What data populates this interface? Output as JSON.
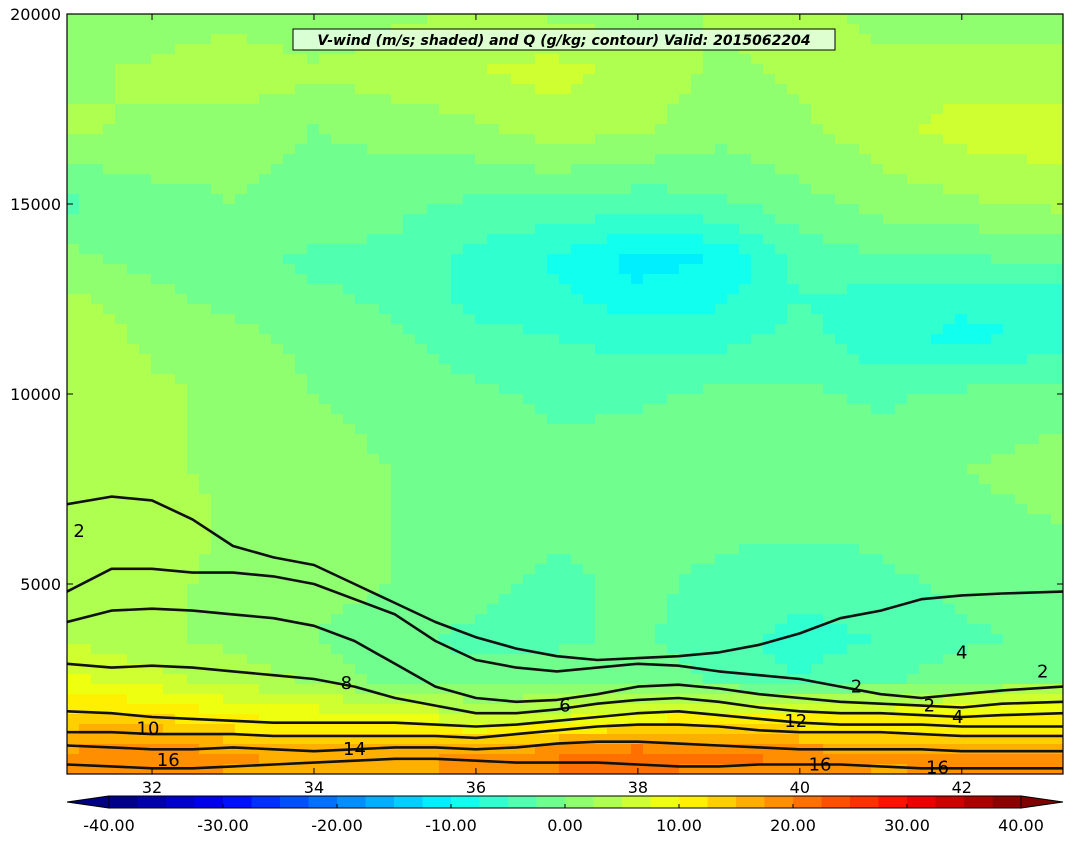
{
  "chart_data": {
    "type": "heatmap",
    "title": "V-wind (m/s; shaded) and Q (g/kg; contour) Valid: 2015062204",
    "x_ticks": [
      "32",
      "34",
      "36",
      "38",
      "40",
      "42"
    ],
    "y_ticks": [
      "5000",
      "10000",
      "15000",
      "20000"
    ],
    "xlim": [
      30.95,
      43.25
    ],
    "ylim": [
      0,
      20000
    ],
    "grid": false,
    "shaded_field": {
      "name": "V-wind",
      "units": "m/s",
      "colormap": "jet",
      "colorbar_range": [
        -40,
        40
      ],
      "colorbar_ticks": [
        "-40.00",
        "-30.00",
        "-20.00",
        "-10.00",
        "0.00",
        "10.00",
        "20.00",
        "30.00",
        "40.00"
      ],
      "colorbar_extend": "both",
      "x_lon": [
        31.0,
        32.0,
        33.0,
        34.0,
        35.0,
        36.0,
        37.0,
        38.0,
        39.0,
        40.0,
        41.0,
        42.0,
        43.2
      ],
      "z_m": [
        0,
        500,
        1000,
        1500,
        2500,
        3500,
        5000,
        6500,
        8000,
        10000,
        11500,
        12500,
        13500,
        15000,
        17000,
        18500,
        20000
      ],
      "v_ms": [
        [
          19,
          19,
          17,
          16,
          17,
          18,
          20,
          20,
          19,
          18,
          17,
          18,
          18
        ],
        [
          18,
          19,
          18,
          17,
          17,
          18,
          20,
          22,
          21,
          20,
          18,
          18,
          18
        ],
        [
          16,
          17,
          14,
          12,
          13,
          12,
          14,
          16,
          15,
          14,
          13,
          13,
          13
        ],
        [
          13,
          13,
          10,
          9,
          8,
          6,
          6,
          9,
          10,
          10,
          10,
          11,
          11
        ],
        [
          8,
          6,
          4,
          2,
          -1,
          -2,
          -1,
          -1,
          -3,
          -5,
          -3,
          -1,
          0
        ],
        [
          5,
          3,
          2,
          0,
          -2,
          -3,
          -3,
          -2,
          -4,
          -6,
          -5,
          -3,
          -2
        ],
        [
          4,
          3,
          2,
          1,
          0,
          -2,
          -3,
          -2,
          -3,
          -4,
          -3,
          -2,
          -1
        ],
        [
          5,
          4,
          2,
          1,
          0,
          -2,
          -2,
          -2,
          -2,
          -2,
          -2,
          -1,
          0
        ],
        [
          5,
          3,
          2,
          1,
          0,
          -1,
          -2,
          -1,
          -1,
          -2,
          -1,
          0,
          1
        ],
        [
          4,
          3,
          2,
          0,
          -1,
          -2,
          -3,
          -3,
          -2,
          -2,
          -3,
          -2,
          -1
        ],
        [
          4,
          2,
          1,
          -1,
          -2,
          -4,
          -5,
          -6,
          -6,
          -4,
          -7,
          -8,
          -7
        ],
        [
          3,
          1,
          -1,
          -2,
          -3,
          -6,
          -7,
          -9,
          -8,
          -5,
          -6,
          -7,
          -7
        ],
        [
          1,
          -1,
          -2,
          -3,
          -3,
          -6,
          -8,
          -11,
          -10,
          -4,
          -3,
          -3,
          -2
        ],
        [
          -3,
          -1,
          0,
          -1,
          -2,
          -3,
          -3,
          -4,
          -3,
          -1,
          1,
          2,
          3
        ],
        [
          3,
          2,
          1,
          0,
          1,
          2,
          4,
          3,
          1,
          2,
          4,
          6,
          7
        ],
        [
          2,
          3,
          5,
          3,
          4,
          5,
          6,
          4,
          2,
          3,
          3,
          4,
          3
        ],
        [
          0,
          1,
          1,
          0,
          2,
          3,
          2,
          1,
          3,
          3,
          2,
          1,
          2
        ]
      ]
    },
    "contour_field": {
      "name": "Q",
      "units": "g/kg",
      "levels": [
        2,
        4,
        6,
        8,
        10,
        12,
        14,
        16
      ],
      "x_lon": [
        30.95,
        31.5,
        32.0,
        32.5,
        33.0,
        33.5,
        34.0,
        34.5,
        35.0,
        35.5,
        36.0,
        36.5,
        37.0,
        37.5,
        38.0,
        38.5,
        39.0,
        39.5,
        40.0,
        40.5,
        41.0,
        41.5,
        42.0,
        42.5,
        43.25
      ],
      "lines": [
        {
          "level": 2,
          "z_m": [
            7100,
            7300,
            7200,
            6700,
            6000,
            5700,
            5500,
            5000,
            4500,
            4000,
            3600,
            3300,
            3100,
            3000,
            3050,
            3100,
            3200,
            3400,
            3700,
            4100,
            4300,
            4600,
            4700,
            4750,
            4800
          ]
        },
        {
          "level": 4,
          "z_m": [
            4800,
            5400,
            5400,
            5300,
            5300,
            5200,
            5000,
            4600,
            4200,
            3500,
            3000,
            2800,
            2700,
            2800,
            2900,
            2850,
            2700,
            2600,
            2500,
            2300,
            2100,
            2000,
            2100,
            2200,
            2300
          ]
        },
        {
          "level": 6,
          "z_m": [
            4000,
            4300,
            4350,
            4300,
            4200,
            4100,
            3900,
            3500,
            2900,
            2300,
            2000,
            1900,
            1950,
            2100,
            2300,
            2350,
            2250,
            2100,
            2000,
            1900,
            1850,
            1800,
            1750,
            1850,
            1900
          ]
        },
        {
          "level": 8,
          "z_m": [
            2900,
            2800,
            2850,
            2800,
            2700,
            2600,
            2500,
            2300,
            2000,
            1800,
            1600,
            1600,
            1700,
            1850,
            1950,
            2000,
            1900,
            1750,
            1650,
            1600,
            1600,
            1550,
            1500,
            1550,
            1600
          ]
        },
        {
          "level": 10,
          "z_m": [
            1650,
            1600,
            1500,
            1450,
            1400,
            1350,
            1350,
            1350,
            1350,
            1300,
            1250,
            1300,
            1400,
            1500,
            1600,
            1650,
            1550,
            1450,
            1350,
            1300,
            1300,
            1300,
            1250,
            1250,
            1250
          ]
        },
        {
          "level": 12,
          "z_m": [
            1100,
            1100,
            1050,
            1050,
            1050,
            1000,
            1000,
            1000,
            1000,
            1000,
            950,
            1050,
            1150,
            1250,
            1300,
            1300,
            1250,
            1150,
            1100,
            1100,
            1100,
            1050,
            1000,
            1000,
            1000
          ]
        },
        {
          "level": 14,
          "z_m": [
            750,
            700,
            650,
            650,
            700,
            650,
            600,
            650,
            700,
            700,
            650,
            700,
            800,
            850,
            850,
            800,
            750,
            700,
            650,
            650,
            650,
            650,
            600,
            600,
            600
          ]
        },
        {
          "level": 16,
          "z_m": [
            250,
            200,
            150,
            150,
            200,
            250,
            300,
            350,
            400,
            400,
            350,
            300,
            300,
            300,
            250,
            200,
            200,
            250,
            250,
            250,
            200,
            150,
            150,
            150,
            150
          ]
        }
      ],
      "inline_labels": [
        {
          "text": "2",
          "x": 31.1,
          "z": 6400
        },
        {
          "text": "8",
          "x": 34.4,
          "z": 2400
        },
        {
          "text": "10",
          "x": 31.95,
          "z": 1200
        },
        {
          "text": "16",
          "x": 32.2,
          "z": 370
        },
        {
          "text": "14",
          "x": 34.5,
          "z": 660
        },
        {
          "text": "6",
          "x": 37.1,
          "z": 1800
        },
        {
          "text": "12",
          "x": 39.95,
          "z": 1400
        },
        {
          "text": "16",
          "x": 40.25,
          "z": 250
        },
        {
          "text": "16",
          "x": 41.7,
          "z": 170
        },
        {
          "text": "2",
          "x": 40.7,
          "z": 2300
        },
        {
          "text": "2",
          "x": 41.6,
          "z": 1800
        },
        {
          "text": "4",
          "x": 41.95,
          "z": 1500
        },
        {
          "text": "4",
          "x": 42.0,
          "z": 3200
        },
        {
          "text": "2",
          "x": 43.0,
          "z": 2700
        }
      ]
    }
  }
}
